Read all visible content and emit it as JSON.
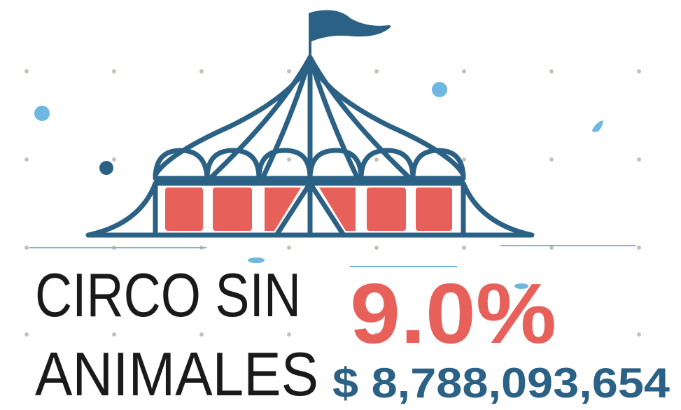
{
  "infographic": {
    "title_line1": "CIRCO SIN",
    "title_line2": "ANIMALES",
    "percentage": "9.0%",
    "amount": "$ 8,788,093,654"
  }
}
